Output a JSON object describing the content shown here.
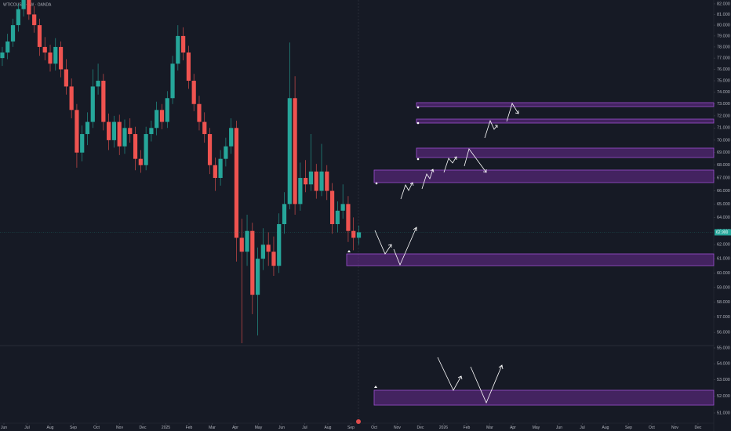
{
  "chart_data": {
    "type": "candlestick",
    "title": "WTICOUSD · 1W · OANDA",
    "log_scale": true,
    "up_color": "#26a69a",
    "down_color": "#ef5350",
    "price_label": "62.900",
    "xlim": [
      -0.17,
      30.68
    ],
    "xticks": [
      {
        "value": 0,
        "label": "Jun"
      },
      {
        "value": 1,
        "label": "Jul"
      },
      {
        "value": 2,
        "label": "Aug"
      },
      {
        "value": 3,
        "label": "Sep"
      },
      {
        "value": 4,
        "label": "Oct"
      },
      {
        "value": 5,
        "label": "Nov"
      },
      {
        "value": 6,
        "label": "Dec"
      },
      {
        "value": 7,
        "label": "2025"
      },
      {
        "value": 8,
        "label": "Feb"
      },
      {
        "value": 9,
        "label": "Mar"
      },
      {
        "value": 10,
        "label": "Apr"
      },
      {
        "value": 11,
        "label": "May"
      },
      {
        "value": 12,
        "label": "Jun"
      },
      {
        "value": 13,
        "label": "Jul"
      },
      {
        "value": 14,
        "label": "Aug"
      },
      {
        "value": 15,
        "label": "Sep"
      },
      {
        "value": 16,
        "label": "Oct"
      },
      {
        "value": 17,
        "label": "Nov"
      },
      {
        "value": 18,
        "label": "Dec"
      },
      {
        "value": 19,
        "label": "2026"
      },
      {
        "value": 20,
        "label": "Feb"
      },
      {
        "value": 21,
        "label": "Mar"
      },
      {
        "value": 22,
        "label": "Apr"
      },
      {
        "value": 23,
        "label": "May"
      },
      {
        "value": 24,
        "label": "Jun"
      },
      {
        "value": 25,
        "label": "Jul"
      },
      {
        "value": 26,
        "label": "Aug"
      },
      {
        "value": 27,
        "label": "Sep"
      },
      {
        "value": 28,
        "label": "Oct"
      },
      {
        "value": 29,
        "label": "Nov"
      },
      {
        "value": 30,
        "label": "Dec"
      }
    ],
    "ylim": [
      50.4,
      82.37
    ],
    "yticks": [
      {
        "value": 82,
        "label": "82.000"
      },
      {
        "value": 81,
        "label": "81.000"
      },
      {
        "value": 80,
        "label": "80.000"
      },
      {
        "value": 79,
        "label": "79.000"
      },
      {
        "value": 78,
        "label": "78.000"
      },
      {
        "value": 77,
        "label": "77.000"
      },
      {
        "value": 76,
        "label": "76.000"
      },
      {
        "value": 75,
        "label": "75.000"
      },
      {
        "value": 74,
        "label": "74.000"
      },
      {
        "value": 73,
        "label": "73.000"
      },
      {
        "value": 72,
        "label": "72.000"
      },
      {
        "value": 71,
        "label": "71.000"
      },
      {
        "value": 70,
        "label": "70.000"
      },
      {
        "value": 69,
        "label": "69.000"
      },
      {
        "value": 68,
        "label": "68.000"
      },
      {
        "value": 67,
        "label": "67.000"
      },
      {
        "value": 66,
        "label": "66.000"
      },
      {
        "value": 65,
        "label": "65.000"
      },
      {
        "value": 64,
        "label": "64.000"
      },
      {
        "value": 63,
        "label": "63.000"
      },
      {
        "value": 62,
        "label": "62.000"
      },
      {
        "value": 61,
        "label": "61.000"
      },
      {
        "value": 60,
        "label": "60.000"
      },
      {
        "value": 59,
        "label": "59.000"
      },
      {
        "value": 58,
        "label": "58.000"
      },
      {
        "value": 57,
        "label": "57.000"
      },
      {
        "value": 56,
        "label": "56.000"
      },
      {
        "value": 55,
        "label": "55.000"
      },
      {
        "value": 54,
        "label": "54.000"
      },
      {
        "value": 53,
        "label": "53.000"
      },
      {
        "value": 52,
        "label": "52.000"
      },
      {
        "value": 51,
        "label": "51.000"
      }
    ],
    "series": {
      "x": [
        -0.07,
        0.16,
        0.39,
        0.62,
        0.85,
        1.08,
        1.31,
        1.54,
        1.77,
        2.0,
        2.23,
        2.46,
        2.69,
        2.92,
        3.15,
        3.38,
        3.61,
        3.84,
        4.07,
        4.3,
        4.53,
        4.76,
        4.99,
        5.22,
        5.45,
        5.68,
        5.91,
        6.14,
        6.37,
        6.6,
        6.83,
        7.06,
        7.29,
        7.52,
        7.75,
        7.98,
        8.21,
        8.44,
        8.67,
        8.9,
        9.13,
        9.36,
        9.59,
        9.82,
        10.05,
        10.28,
        10.51,
        10.74,
        10.97,
        11.2,
        11.43,
        11.66,
        11.89,
        12.12,
        12.35,
        12.58,
        12.81,
        13.04,
        13.27,
        13.5,
        13.73,
        13.96,
        14.19,
        14.42,
        14.65,
        14.88,
        15.11,
        15.34
      ],
      "open": [
        77.0,
        77.5,
        78.5,
        80.0,
        81.5,
        82.5,
        81.0,
        80.0,
        78.0,
        77.5,
        76.5,
        78.0,
        76.0,
        74.5,
        72.5,
        69.0,
        70.5,
        71.5,
        74.5,
        75.0,
        71.5,
        70.0,
        71.5,
        69.5,
        71.0,
        70.5,
        68.5,
        68.0,
        70.5,
        71.0,
        72.5,
        71.5,
        73.5,
        76.5,
        79.0,
        77.5,
        75.0,
        73.0,
        71.5,
        70.5,
        68.0,
        67.0,
        68.5,
        69.5,
        71.0,
        62.5,
        61.5,
        63.0,
        58.5,
        61.0,
        62.0,
        61.5,
        60.5,
        63.5,
        65.0,
        73.5,
        65.0,
        67.0,
        66.5,
        67.5,
        66.0,
        67.5,
        66.0,
        63.5,
        64.5,
        65.0,
        63.0,
        62.5
      ],
      "high": [
        78.0,
        79.2,
        80.6,
        82.0,
        83.0,
        83.2,
        81.8,
        80.6,
        78.9,
        78.2,
        78.8,
        78.5,
        76.9,
        75.2,
        73.0,
        71.2,
        72.3,
        76.0,
        76.5,
        75.6,
        72.2,
        72.0,
        72.1,
        71.7,
        71.8,
        71.1,
        69.2,
        71.1,
        71.6,
        73.2,
        73.0,
        74.1,
        77.2,
        80.0,
        79.8,
        78.1,
        75.6,
        73.7,
        72.3,
        71.0,
        68.6,
        69.2,
        70.2,
        71.8,
        71.6,
        63.9,
        64.2,
        63.6,
        61.8,
        63.2,
        62.9,
        62.6,
        64.3,
        65.9,
        78.4,
        75.4,
        68.2,
        68.4,
        70.5,
        68.1,
        69.7,
        68.0,
        66.6,
        65.2,
        66.5,
        65.6,
        64.0,
        63.4
      ],
      "low": [
        76.3,
        76.9,
        78.0,
        79.4,
        80.8,
        80.5,
        79.3,
        77.2,
        76.8,
        75.8,
        75.9,
        75.3,
        73.8,
        71.8,
        67.8,
        68.3,
        69.6,
        71.0,
        73.8,
        70.8,
        69.2,
        69.4,
        68.8,
        68.9,
        69.8,
        67.6,
        67.4,
        67.6,
        69.9,
        70.4,
        70.9,
        71.0,
        73.0,
        75.9,
        76.8,
        74.3,
        72.4,
        70.8,
        69.8,
        67.3,
        66.0,
        66.4,
        67.9,
        68.9,
        60.8,
        55.3,
        60.5,
        57.2,
        55.8,
        60.2,
        60.5,
        59.8,
        60.0,
        62.8,
        64.6,
        64.2,
        64.5,
        65.9,
        66.0,
        65.4,
        65.6,
        65.3,
        62.8,
        62.9,
        63.9,
        62.2,
        61.6,
        62.0
      ],
      "close": [
        77.5,
        78.5,
        80.0,
        81.5,
        82.5,
        81.0,
        80.0,
        78.0,
        77.5,
        76.5,
        78.0,
        76.0,
        74.5,
        72.5,
        69.0,
        70.5,
        71.5,
        74.5,
        75.0,
        71.5,
        70.0,
        71.5,
        69.5,
        71.0,
        70.5,
        68.5,
        68.0,
        70.5,
        71.0,
        72.5,
        71.5,
        73.5,
        76.5,
        79.0,
        77.5,
        75.0,
        73.0,
        71.5,
        70.5,
        68.0,
        67.0,
        68.5,
        69.5,
        71.0,
        62.5,
        61.5,
        63.0,
        58.5,
        61.0,
        62.0,
        61.5,
        60.5,
        63.5,
        65.0,
        73.5,
        65.0,
        67.0,
        66.5,
        67.5,
        66.0,
        67.5,
        66.0,
        63.5,
        64.5,
        65.0,
        63.0,
        62.5,
        62.9
      ]
    }
  }
}
